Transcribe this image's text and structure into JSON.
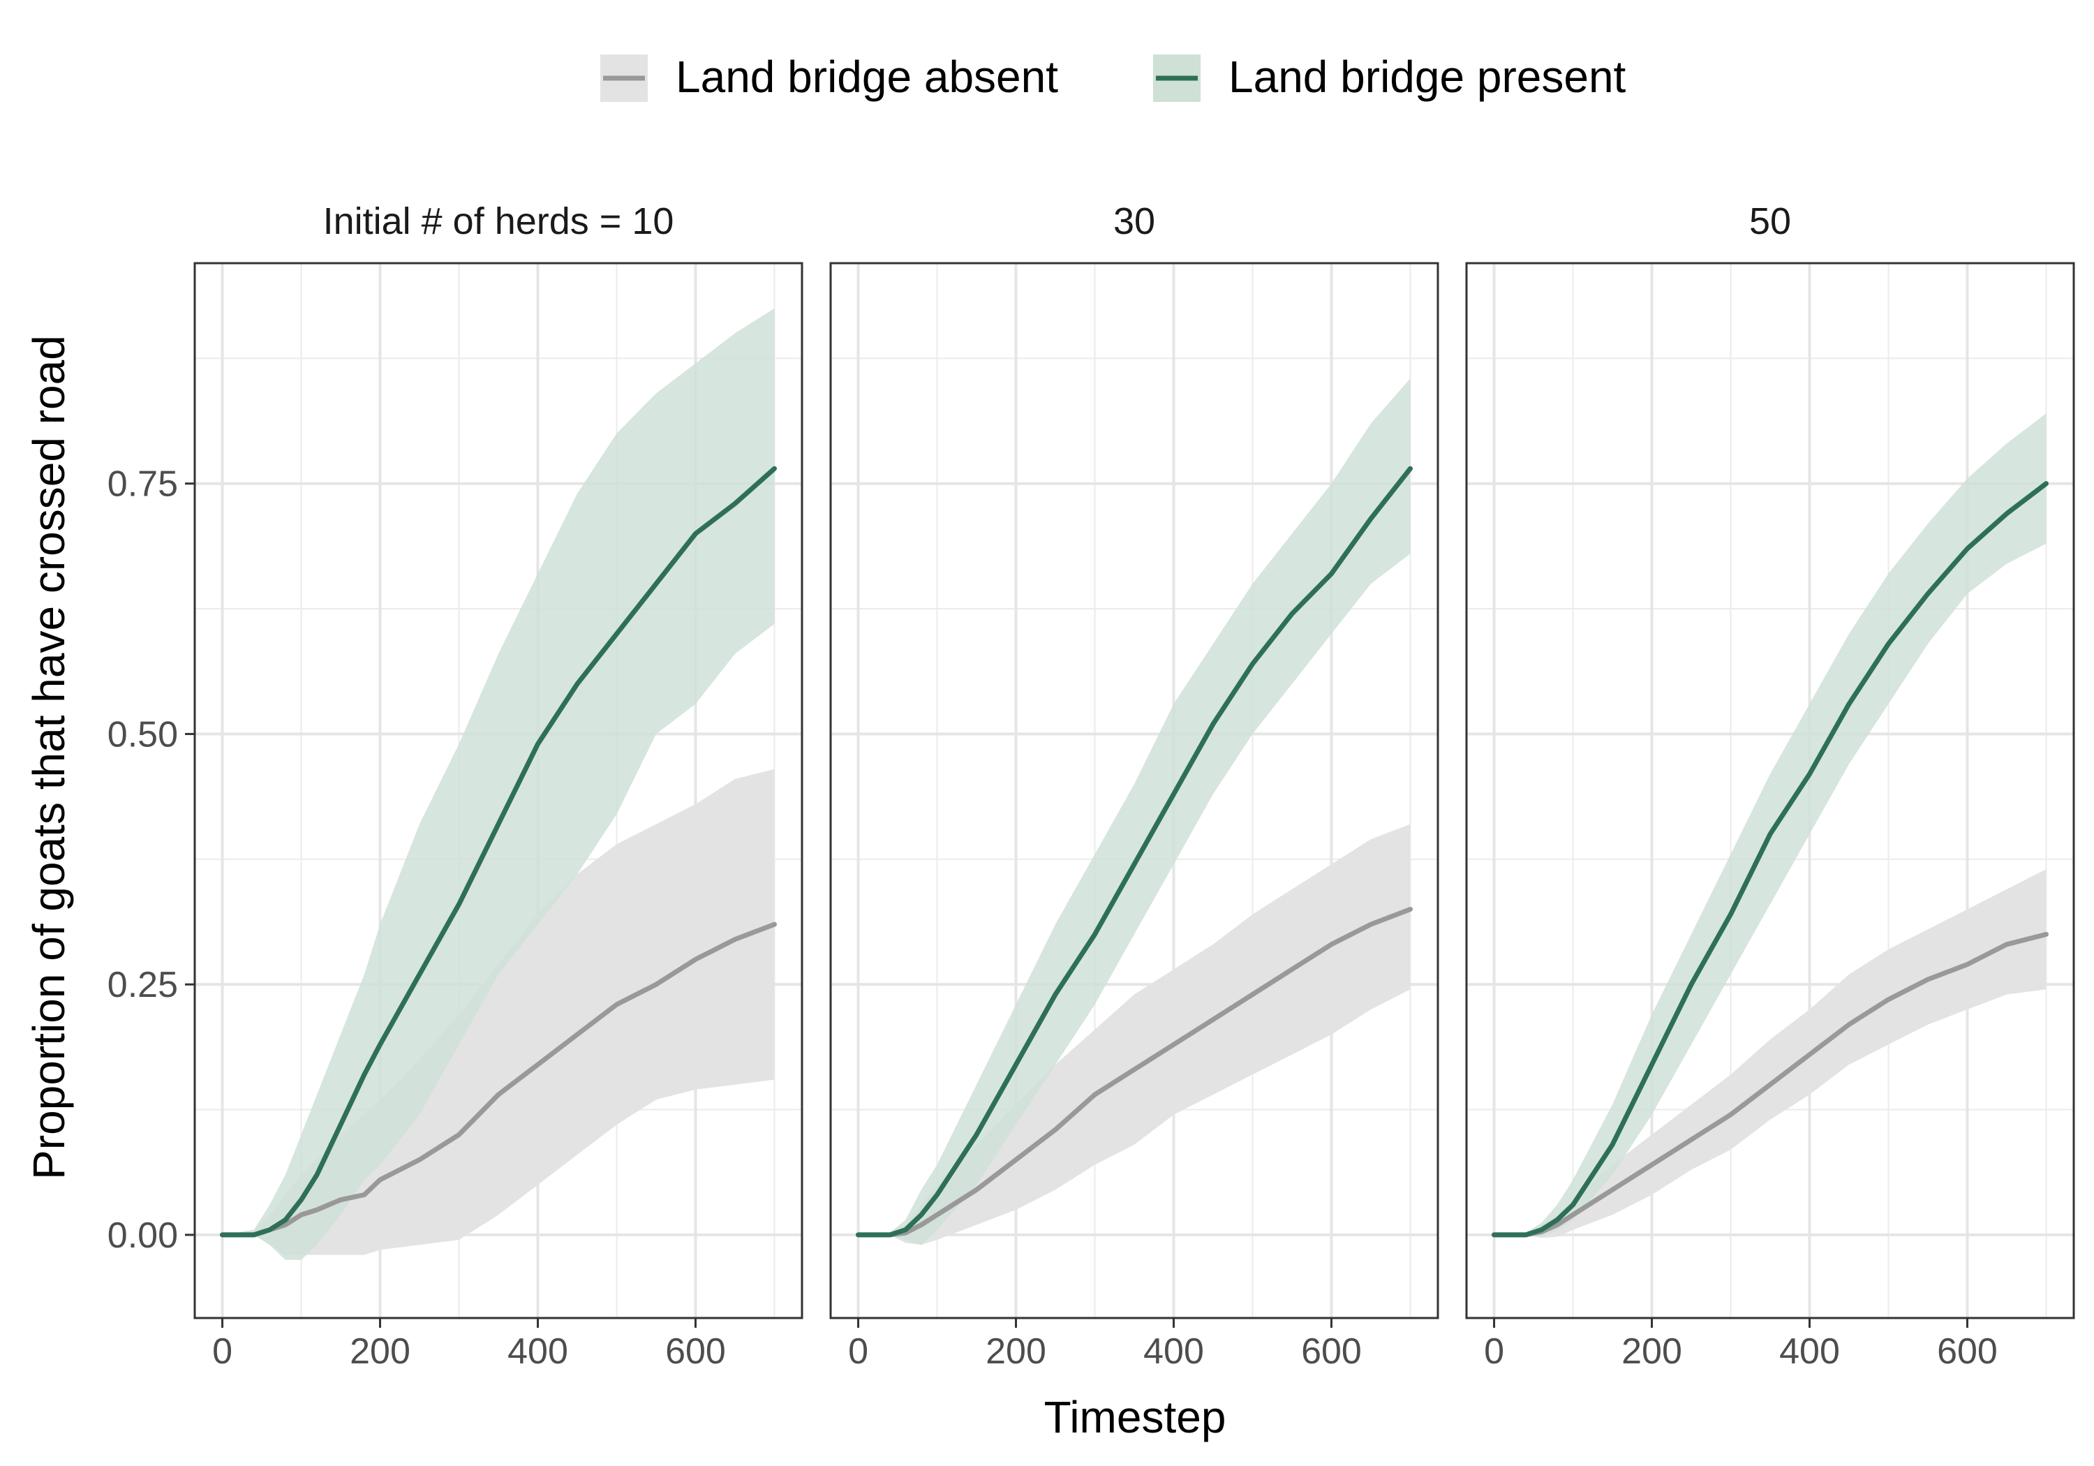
{
  "legend": {
    "items": [
      {
        "label": "Land bridge absent",
        "color": "#999999",
        "fill": "#e3e3e3"
      },
      {
        "label": "Land bridge present",
        "color": "#2e7057",
        "fill": "#cfe0d7"
      }
    ]
  },
  "chart_data": {
    "type": "line",
    "xlabel": "Timestep",
    "ylabel": "Proportion of goats that have crossed road",
    "xlim": [
      -35,
      735
    ],
    "ylim": [
      -0.083,
      0.97
    ],
    "xticks": [
      0,
      200,
      400,
      600
    ],
    "yticks": [
      0,
      0.25,
      0.5,
      0.75
    ],
    "ytick_labels": [
      "0.00",
      "0.25",
      "0.50",
      "0.75"
    ],
    "grid": true,
    "legend_position": "top",
    "panels": [
      {
        "title": "Initial # of herds = 10",
        "series": [
          {
            "name": "Land bridge absent",
            "x": [
              0,
              40,
              60,
              80,
              100,
              120,
              150,
              180,
              200,
              250,
              300,
              350,
              400,
              450,
              500,
              550,
              600,
              650,
              700
            ],
            "mean": [
              0,
              0,
              0.005,
              0.01,
              0.02,
              0.025,
              0.035,
              0.04,
              0.055,
              0.075,
              0.1,
              0.14,
              0.17,
              0.2,
              0.23,
              0.25,
              0.275,
              0.295,
              0.31
            ],
            "lower": [
              0,
              0,
              -0.01,
              -0.02,
              -0.02,
              -0.02,
              -0.02,
              -0.02,
              -0.015,
              -0.01,
              -0.005,
              0.02,
              0.05,
              0.08,
              0.11,
              0.135,
              0.145,
              0.15,
              0.155
            ],
            "upper": [
              0,
              0.005,
              0.02,
              0.04,
              0.06,
              0.075,
              0.1,
              0.12,
              0.135,
              0.175,
              0.22,
              0.27,
              0.32,
              0.36,
              0.39,
              0.41,
              0.43,
              0.455,
              0.465
            ]
          },
          {
            "name": "Land bridge present",
            "x": [
              0,
              40,
              60,
              80,
              100,
              120,
              150,
              180,
              200,
              250,
              300,
              350,
              400,
              450,
              500,
              550,
              600,
              650,
              700
            ],
            "mean": [
              0,
              0,
              0.005,
              0.015,
              0.035,
              0.06,
              0.11,
              0.16,
              0.19,
              0.26,
              0.33,
              0.41,
              0.49,
              0.55,
              0.6,
              0.65,
              0.7,
              0.73,
              0.765
            ],
            "lower": [
              0,
              0,
              -0.01,
              -0.025,
              -0.025,
              -0.01,
              0.02,
              0.055,
              0.07,
              0.12,
              0.19,
              0.26,
              0.31,
              0.36,
              0.42,
              0.5,
              0.53,
              0.58,
              0.61
            ],
            "upper": [
              0,
              0.005,
              0.03,
              0.06,
              0.1,
              0.14,
              0.2,
              0.26,
              0.31,
              0.41,
              0.49,
              0.58,
              0.66,
              0.74,
              0.8,
              0.84,
              0.87,
              0.9,
              0.925
            ]
          }
        ]
      },
      {
        "title": "30",
        "series": [
          {
            "name": "Land bridge absent",
            "x": [
              0,
              40,
              60,
              80,
              100,
              150,
              200,
              250,
              300,
              350,
              400,
              450,
              500,
              550,
              600,
              650,
              700
            ],
            "mean": [
              0,
              0,
              0.002,
              0.01,
              0.02,
              0.045,
              0.075,
              0.105,
              0.14,
              0.165,
              0.19,
              0.215,
              0.24,
              0.265,
              0.29,
              0.31,
              0.325
            ],
            "lower": [
              0,
              0,
              -0.008,
              -0.01,
              -0.005,
              0.01,
              0.025,
              0.045,
              0.07,
              0.09,
              0.12,
              0.14,
              0.16,
              0.18,
              0.2,
              0.225,
              0.245
            ],
            "upper": [
              0,
              0,
              0.01,
              0.03,
              0.05,
              0.09,
              0.13,
              0.17,
              0.205,
              0.24,
              0.265,
              0.29,
              0.32,
              0.345,
              0.37,
              0.395,
              0.41
            ]
          },
          {
            "name": "Land bridge present",
            "x": [
              0,
              40,
              60,
              80,
              100,
              150,
              200,
              250,
              300,
              350,
              400,
              450,
              500,
              550,
              600,
              650,
              700
            ],
            "mean": [
              0,
              0,
              0.005,
              0.02,
              0.04,
              0.1,
              0.17,
              0.24,
              0.3,
              0.37,
              0.44,
              0.51,
              0.57,
              0.62,
              0.66,
              0.715,
              0.765
            ],
            "lower": [
              0,
              0,
              -0.005,
              -0.01,
              0.005,
              0.05,
              0.11,
              0.17,
              0.23,
              0.3,
              0.37,
              0.44,
              0.5,
              0.55,
              0.6,
              0.65,
              0.68
            ],
            "upper": [
              0,
              0.002,
              0.015,
              0.045,
              0.07,
              0.15,
              0.23,
              0.31,
              0.38,
              0.45,
              0.53,
              0.59,
              0.65,
              0.7,
              0.75,
              0.81,
              0.855
            ]
          }
        ]
      },
      {
        "title": "50",
        "series": [
          {
            "name": "Land bridge absent",
            "x": [
              0,
              40,
              60,
              80,
              100,
              150,
              200,
              250,
              300,
              350,
              400,
              450,
              500,
              550,
              600,
              650,
              700
            ],
            "mean": [
              0,
              0,
              0.003,
              0.01,
              0.02,
              0.045,
              0.07,
              0.095,
              0.12,
              0.15,
              0.18,
              0.21,
              0.235,
              0.255,
              0.27,
              0.29,
              0.3
            ],
            "lower": [
              0,
              0,
              -0.003,
              -0.002,
              0.005,
              0.02,
              0.04,
              0.065,
              0.085,
              0.115,
              0.14,
              0.17,
              0.19,
              0.21,
              0.225,
              0.24,
              0.245
            ],
            "upper": [
              0,
              0,
              0.01,
              0.02,
              0.035,
              0.07,
              0.1,
              0.13,
              0.16,
              0.195,
              0.225,
              0.26,
              0.285,
              0.305,
              0.325,
              0.345,
              0.365
            ]
          },
          {
            "name": "Land bridge present",
            "x": [
              0,
              40,
              60,
              80,
              100,
              150,
              200,
              250,
              300,
              350,
              400,
              450,
              500,
              550,
              600,
              650,
              700
            ],
            "mean": [
              0,
              0,
              0.005,
              0.015,
              0.03,
              0.09,
              0.17,
              0.25,
              0.32,
              0.4,
              0.46,
              0.53,
              0.59,
              0.64,
              0.685,
              0.72,
              0.75
            ],
            "lower": [
              0,
              0,
              -0.002,
              0.005,
              0.015,
              0.06,
              0.12,
              0.19,
              0.26,
              0.33,
              0.4,
              0.47,
              0.53,
              0.59,
              0.64,
              0.67,
              0.69
            ],
            "upper": [
              0,
              0.002,
              0.012,
              0.03,
              0.055,
              0.13,
              0.22,
              0.3,
              0.38,
              0.46,
              0.53,
              0.6,
              0.66,
              0.71,
              0.755,
              0.79,
              0.82
            ]
          }
        ]
      }
    ]
  }
}
